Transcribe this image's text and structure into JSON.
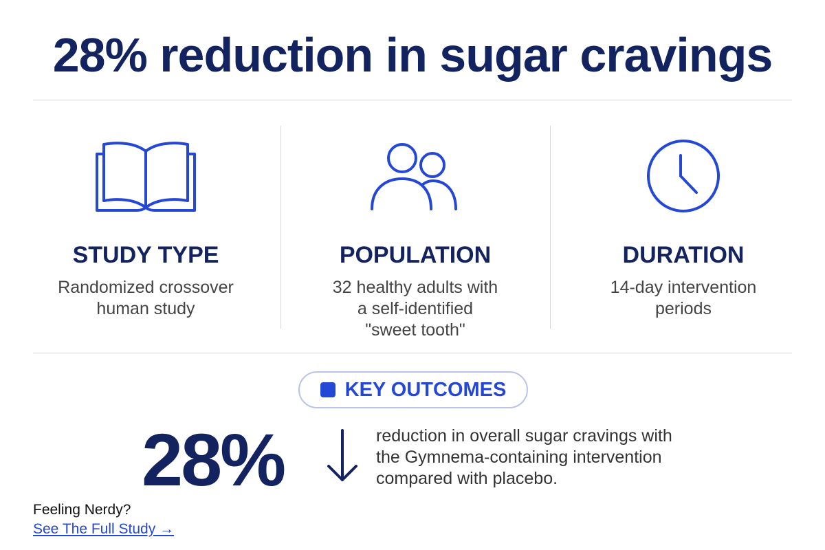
{
  "title": "28% reduction in sugar cravings",
  "columns": [
    {
      "heading": "STUDY TYPE",
      "lines": [
        "Randomized crossover",
        "human study"
      ]
    },
    {
      "heading": "POPULATION",
      "lines": [
        "32 healthy adults with",
        "a self-identified",
        "\"sweet tooth\""
      ]
    },
    {
      "heading": "DURATION",
      "lines": [
        "14-day intervention",
        "periods"
      ]
    }
  ],
  "outcomes": {
    "badge": "KEY OUTCOMES",
    "stat": "28%",
    "lines": [
      "reduction in overall sugar cravings with",
      "the Gymnema-containing intervention",
      "compared with placebo."
    ]
  },
  "footer": {
    "prompt": "Feeling Nerdy?",
    "link": "See The Full Study →"
  }
}
